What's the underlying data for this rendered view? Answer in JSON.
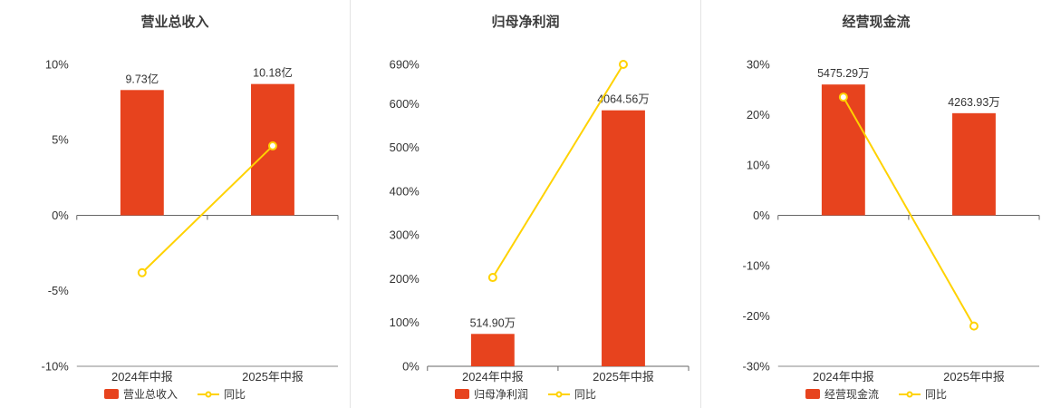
{
  "colors": {
    "bar": "#e7431e",
    "line": "#ffd200",
    "axis_text": "#333333",
    "axis_line": "#666666",
    "boundary_line": "#888888",
    "title": "#3c3c3c",
    "divider": "#e3e3e3",
    "marker_fill": "#ffffff",
    "value_label": "#333333"
  },
  "chart_data": [
    {
      "type": "bar",
      "title": "营业总收入",
      "categories": [
        "2024年中报",
        "2025年中报"
      ],
      "bars": {
        "name": "营业总收入",
        "values": [
          9.73,
          10.18
        ],
        "unit": "亿",
        "value_labels": [
          "9.73亿",
          "10.18亿"
        ],
        "axis_heights_pct": [
          8.3,
          8.7
        ]
      },
      "line": {
        "name": "同比",
        "values_pct": [
          -3.8,
          4.6
        ]
      },
      "ylim": [
        -10,
        10
      ],
      "yticks": [
        -10,
        -5,
        0,
        5,
        10
      ],
      "ytick_labels": [
        "-10%",
        "-5%",
        "0%",
        "5%",
        "10%"
      ],
      "grid": false,
      "legend_position": "bottom"
    },
    {
      "type": "bar",
      "title": "归母净利润",
      "categories": [
        "2024年中报",
        "2025年中报"
      ],
      "bars": {
        "name": "归母净利润",
        "values": [
          514.9,
          4064.56
        ],
        "unit": "万",
        "value_labels": [
          "514.90万",
          "4064.56万"
        ],
        "axis_heights_pct": [
          74,
          585
        ]
      },
      "line": {
        "name": "同比",
        "values_pct": [
          203,
          690
        ]
      },
      "ylim": [
        0,
        690
      ],
      "yticks": [
        0,
        100,
        200,
        300,
        400,
        500,
        600,
        690
      ],
      "ytick_labels": [
        "0%",
        "100%",
        "200%",
        "300%",
        "400%",
        "500%",
        "600%",
        "690%"
      ],
      "grid": false,
      "legend_position": "bottom"
    },
    {
      "type": "bar",
      "title": "经营现金流",
      "categories": [
        "2024年中报",
        "2025年中报"
      ],
      "bars": {
        "name": "经营现金流",
        "values": [
          5475.29,
          4263.93
        ],
        "unit": "万",
        "value_labels": [
          "5475.29万",
          "4263.93万"
        ],
        "axis_heights_pct": [
          26,
          20.3
        ]
      },
      "line": {
        "name": "同比",
        "values_pct": [
          23.5,
          -22
        ]
      },
      "ylim": [
        -30,
        30
      ],
      "yticks": [
        -30,
        -20,
        -10,
        0,
        10,
        20,
        30
      ],
      "ytick_labels": [
        "-30%",
        "-20%",
        "-10%",
        "0%",
        "10%",
        "20%",
        "30%"
      ],
      "grid": false,
      "legend_position": "bottom"
    }
  ]
}
